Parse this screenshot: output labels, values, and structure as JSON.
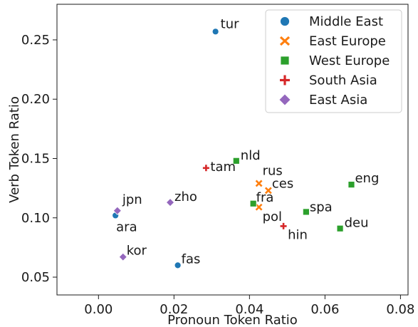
{
  "chart_data": {
    "type": "scatter",
    "title": "",
    "xlabel": "Pronoun Token Ratio",
    "ylabel": "Verb Token Ratio",
    "xlim": [
      -0.011,
      0.082
    ],
    "ylim": [
      0.035,
      0.28
    ],
    "xticks": [
      0.0,
      0.02,
      0.04,
      0.06,
      0.08
    ],
    "xtick_labels": [
      "0.00",
      "0.02",
      "0.04",
      "0.06",
      "0.08"
    ],
    "yticks": [
      0.05,
      0.1,
      0.15,
      0.2,
      0.25
    ],
    "ytick_labels": [
      "0.05",
      "0.10",
      "0.15",
      "0.20",
      "0.25"
    ],
    "grid": false,
    "legend_position": "top-right",
    "series": [
      {
        "name": "Middle East",
        "marker": "circle",
        "color": "#1f77b4",
        "points": [
          {
            "label": "tur",
            "x": 0.031,
            "y": 0.257
          },
          {
            "label": "ara",
            "x": 0.0045,
            "y": 0.102
          },
          {
            "label": "fas",
            "x": 0.021,
            "y": 0.06
          }
        ]
      },
      {
        "name": "East Europe",
        "marker": "x",
        "color": "#ff7f0e",
        "points": [
          {
            "label": "rus",
            "x": 0.0425,
            "y": 0.129
          },
          {
            "label": "ces",
            "x": 0.045,
            "y": 0.123
          },
          {
            "label": "pol",
            "x": 0.0425,
            "y": 0.109
          }
        ]
      },
      {
        "name": "West Europe",
        "marker": "square",
        "color": "#2ca02c",
        "points": [
          {
            "label": "nld",
            "x": 0.0365,
            "y": 0.148
          },
          {
            "label": "fra",
            "x": 0.041,
            "y": 0.112
          },
          {
            "label": "eng",
            "x": 0.067,
            "y": 0.128
          },
          {
            "label": "spa",
            "x": 0.055,
            "y": 0.105
          },
          {
            "label": "deu",
            "x": 0.064,
            "y": 0.091
          }
        ]
      },
      {
        "name": "South Asia",
        "marker": "plus",
        "color": "#d62728",
        "points": [
          {
            "label": "tam",
            "x": 0.0285,
            "y": 0.142
          },
          {
            "label": "hin",
            "x": 0.049,
            "y": 0.093
          }
        ]
      },
      {
        "name": "East Asia",
        "marker": "diamond",
        "color": "#9467bd",
        "points": [
          {
            "label": "jpn",
            "x": 0.005,
            "y": 0.106
          },
          {
            "label": "zho",
            "x": 0.019,
            "y": 0.113
          },
          {
            "label": "kor",
            "x": 0.0065,
            "y": 0.067
          }
        ]
      }
    ]
  }
}
